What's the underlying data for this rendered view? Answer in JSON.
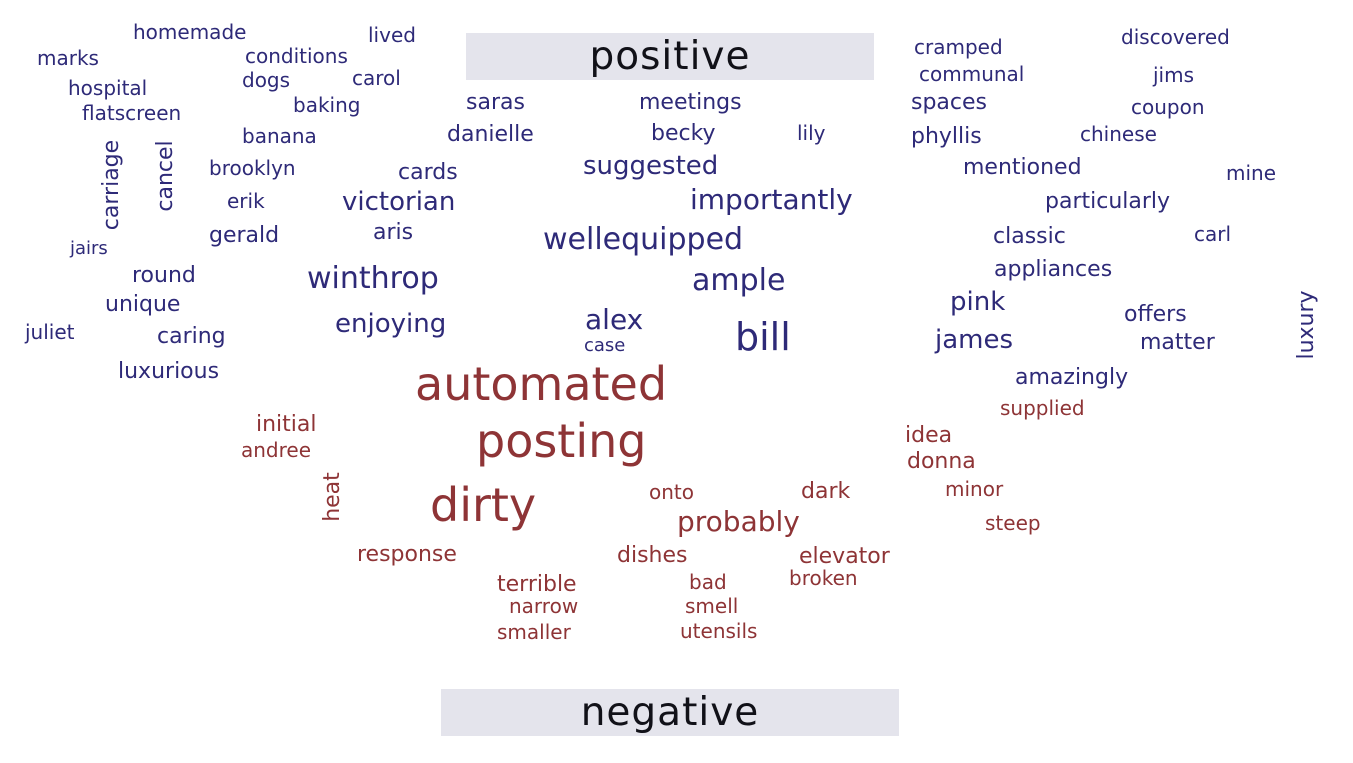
{
  "colors": {
    "positive": "#2e2a78",
    "negative": "#8e3436",
    "label_bg": "#e4e4ec"
  },
  "labels": {
    "positive": "positive",
    "negative": "negative"
  },
  "positive_words": [
    "homemade",
    "lived",
    "marks",
    "conditions",
    "hospital",
    "dogs",
    "carol",
    "flatscreen",
    "baking",
    "banana",
    "carriage",
    "cancel",
    "brooklyn",
    "erik",
    "jairs",
    "gerald",
    "aris",
    "round",
    "unique",
    "juliet",
    "caring",
    "luxurious",
    "saras",
    "meetings",
    "danielle",
    "becky",
    "lily",
    "suggested",
    "cards",
    "victorian",
    "importantly",
    "wellequipped",
    "winthrop",
    "ample",
    "enjoying",
    "alex",
    "case",
    "bill",
    "cramped",
    "discovered",
    "communal",
    "jims",
    "spaces",
    "coupon",
    "phyllis",
    "chinese",
    "mentioned",
    "mine",
    "particularly",
    "classic",
    "carl",
    "appliances",
    "pink",
    "offers",
    "luxury",
    "james",
    "matter",
    "amazingly"
  ],
  "negative_words": [
    "automated",
    "posting",
    "initial",
    "andree",
    "heat",
    "dirty",
    "supplied",
    "idea",
    "donna",
    "onto",
    "dark",
    "minor",
    "probably",
    "steep",
    "response",
    "dishes",
    "elevator",
    "terrible",
    "bad",
    "broken",
    "narrow",
    "smell",
    "smaller",
    "utensils"
  ]
}
